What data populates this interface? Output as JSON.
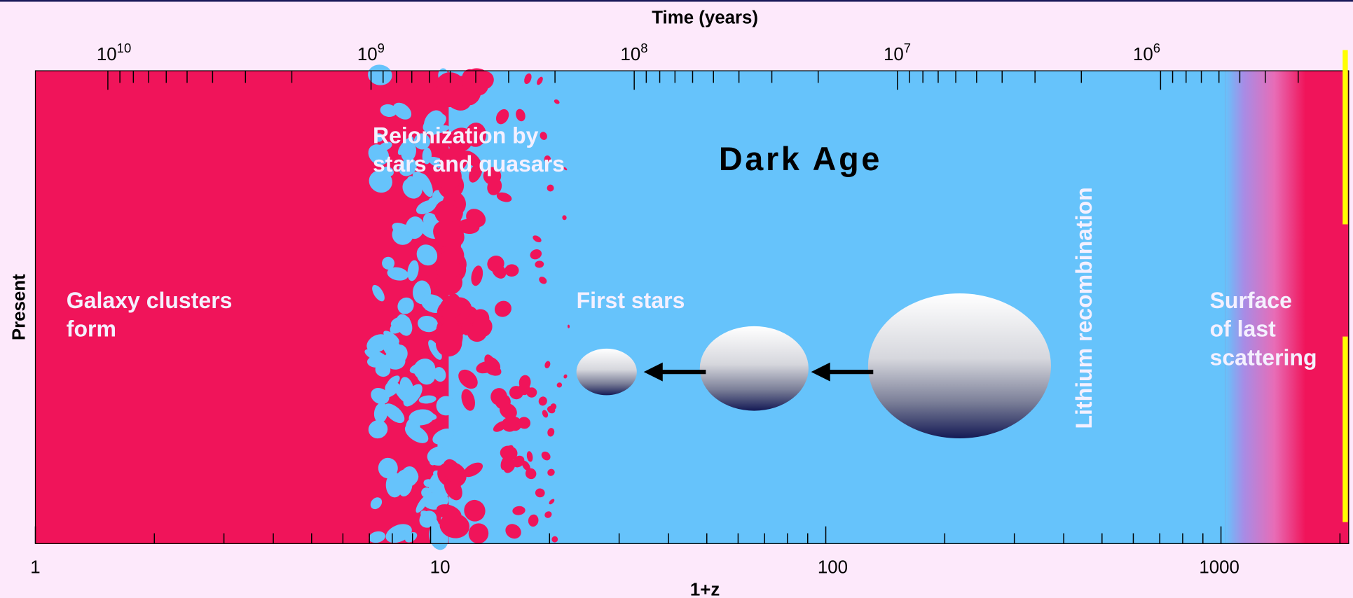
{
  "top_axis": {
    "label": "Time (years)",
    "ticks": [
      {
        "base": "10",
        "exponent": "10"
      },
      {
        "base": "10",
        "exponent": "9"
      },
      {
        "base": "10",
        "exponent": "8"
      },
      {
        "base": "10",
        "exponent": "7"
      },
      {
        "base": "10",
        "exponent": "6"
      }
    ]
  },
  "bottom_axis": {
    "label": "1+z",
    "ticks": [
      "1",
      "10",
      "100",
      "1000"
    ]
  },
  "side_label": "Present",
  "regions": [
    {
      "lines": [
        "Galaxy clusters",
        "form"
      ]
    },
    {
      "lines": [
        "Reionization by",
        "stars and quasars"
      ]
    },
    {
      "lines": [
        "Dark Age"
      ]
    },
    {
      "lines": [
        "First stars"
      ]
    },
    {
      "lines": [
        "Lithium recombination"
      ]
    },
    {
      "lines": [
        "Surface",
        "of last",
        "scattering"
      ]
    }
  ]
}
